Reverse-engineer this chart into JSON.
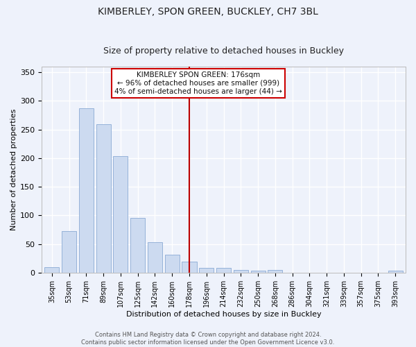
{
  "title": "KIMBERLEY, SPON GREEN, BUCKLEY, CH7 3BL",
  "subtitle": "Size of property relative to detached houses in Buckley",
  "xlabel": "Distribution of detached houses by size in Buckley",
  "ylabel": "Number of detached properties",
  "categories": [
    "35sqm",
    "53sqm",
    "71sqm",
    "89sqm",
    "107sqm",
    "125sqm",
    "142sqm",
    "160sqm",
    "178sqm",
    "196sqm",
    "214sqm",
    "232sqm",
    "250sqm",
    "268sqm",
    "286sqm",
    "304sqm",
    "321sqm",
    "339sqm",
    "357sqm",
    "375sqm",
    "393sqm"
  ],
  "values": [
    9,
    72,
    287,
    259,
    204,
    96,
    53,
    31,
    19,
    8,
    8,
    5,
    4,
    5,
    0,
    0,
    0,
    0,
    0,
    0,
    3
  ],
  "bar_color": "#ccdaf0",
  "bar_edge_color": "#8aaad4",
  "vline_x_index": 8,
  "vline_color": "#bb0000",
  "annotation_title": "KIMBERLEY SPON GREEN: 176sqm",
  "annotation_line1": "← 96% of detached houses are smaller (999)",
  "annotation_line2": "4% of semi-detached houses are larger (44) →",
  "annotation_box_color": "#ffffff",
  "annotation_box_edge": "#cc0000",
  "ylim": [
    0,
    360
  ],
  "yticks": [
    0,
    50,
    100,
    150,
    200,
    250,
    300,
    350
  ],
  "footer_line1": "Contains HM Land Registry data © Crown copyright and database right 2024.",
  "footer_line2": "Contains public sector information licensed under the Open Government Licence v3.0.",
  "bg_color": "#eef2fb",
  "grid_color": "#ffffff",
  "title_fontsize": 10,
  "subtitle_fontsize": 9,
  "xlabel_fontsize": 8,
  "ylabel_fontsize": 8,
  "xtick_fontsize": 7,
  "ytick_fontsize": 8,
  "footer_fontsize": 6,
  "annot_fontsize": 7.5
}
